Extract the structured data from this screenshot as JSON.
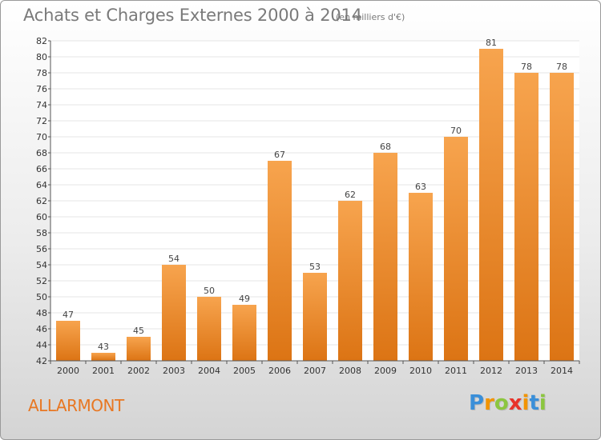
{
  "header": {
    "title": "Achats et Charges Externes 2000 à 2014",
    "unit": "(en milliers d'€)"
  },
  "footer": {
    "place": "ALLARMONT",
    "logo_letters": [
      "P",
      "r",
      "o",
      "x",
      "i",
      "t",
      "i"
    ],
    "logo_colors": [
      "#3a8fd9",
      "#f29400",
      "#8cc63f",
      "#e8332a",
      "#f29400",
      "#3a8fd9",
      "#8cc63f"
    ]
  },
  "chart_data": {
    "type": "bar",
    "title": "Achats et Charges Externes 2000 à 2014",
    "xlabel": "",
    "ylabel": "",
    "categories": [
      "2000",
      "2001",
      "2002",
      "2003",
      "2004",
      "2005",
      "2006",
      "2007",
      "2008",
      "2009",
      "2010",
      "2011",
      "2012",
      "2013",
      "2014"
    ],
    "values": [
      47,
      43,
      45,
      54,
      50,
      49,
      67,
      53,
      62,
      68,
      63,
      70,
      81,
      78,
      78
    ],
    "ylim": [
      42,
      82
    ],
    "yticks": [
      42,
      44,
      46,
      48,
      50,
      52,
      54,
      56,
      58,
      60,
      62,
      64,
      66,
      68,
      70,
      72,
      74,
      76,
      78,
      80,
      82
    ],
    "grid": true,
    "bar_color_top": "#f7a44e",
    "bar_color_bottom": "#dc7414",
    "grid_color": "#e4e4e4"
  }
}
